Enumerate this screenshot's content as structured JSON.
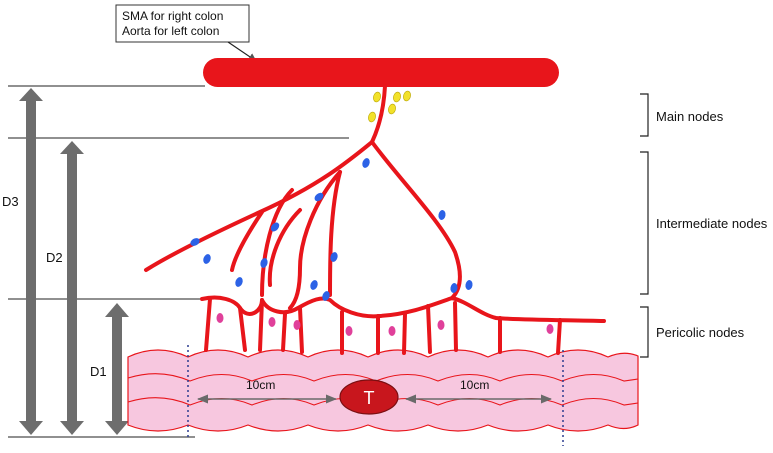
{
  "callout": {
    "line1": "SMA for right colon",
    "line2": "Aorta for left colon"
  },
  "node_groups": {
    "main": "Main nodes",
    "intermediate": "Intermediate nodes",
    "pericolic": "Pericolic nodes"
  },
  "dimensions": {
    "d1": "D1",
    "d2": "D2",
    "d3": "D3"
  },
  "measurements": {
    "left": "10cm",
    "right": "10cm"
  },
  "tumor": {
    "label": "T"
  },
  "colors": {
    "artery": "#e8151b",
    "colon_fill": "#f7c7df",
    "colon_outline": "#e8151b",
    "node_main": "#f2e12a",
    "node_intermediate": "#2c62e6",
    "node_pericolic": "#e0409a",
    "dimension_arrow": "#6d6d6d",
    "resection_line": "#2b3c8f",
    "tumor": "#c8161d"
  }
}
